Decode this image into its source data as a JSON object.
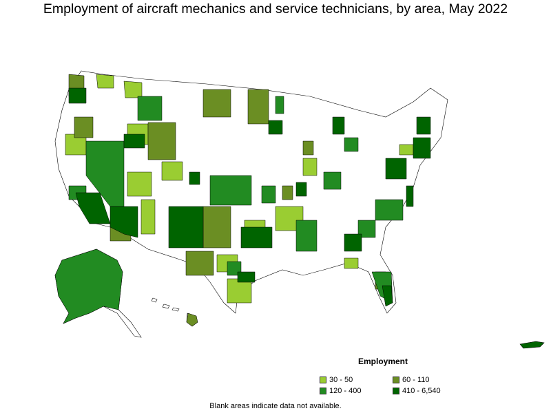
{
  "title": "Employment of aircraft mechanics and service technicians, by area, May 2022",
  "legend": {
    "title": "Employment",
    "items": [
      {
        "label": "30 - 50",
        "color": "#9ACD32"
      },
      {
        "label": "60 - 110",
        "color": "#6B8E23"
      },
      {
        "label": "120 - 400",
        "color": "#228B22"
      },
      {
        "label": "410 - 6,540",
        "color": "#006400"
      }
    ]
  },
  "note": "Blank areas indicate data not available.",
  "colors": {
    "none": "#ffffff",
    "border": "#000000"
  }
}
